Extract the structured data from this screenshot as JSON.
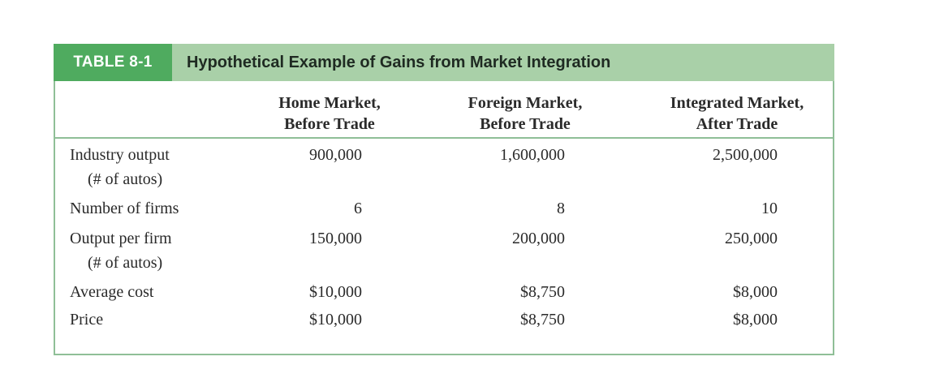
{
  "table": {
    "tag": "TABLE 8-1",
    "title": "Hypothetical Example of Gains from Market Integration",
    "columns": [
      {
        "line1": "Home Market,",
        "line2": "Before Trade"
      },
      {
        "line1": "Foreign Market,",
        "line2": "Before Trade"
      },
      {
        "line1": "Integrated Market,",
        "line2": "After Trade"
      }
    ],
    "rows": [
      {
        "label": "Industry output",
        "sublabel": "(# of autos)",
        "values": [
          "900,000",
          "1,600,000",
          "2,500,000"
        ]
      },
      {
        "label": "Number of firms",
        "sublabel": "",
        "values": [
          "6",
          "8",
          "10"
        ]
      },
      {
        "label": "Output per firm",
        "sublabel": "(# of autos)",
        "values": [
          "150,000",
          "200,000",
          "250,000"
        ]
      },
      {
        "label": "Average cost",
        "sublabel": "",
        "values": [
          "$10,000",
          "$8,750",
          "$8,000"
        ]
      },
      {
        "label": "Price",
        "sublabel": "",
        "values": [
          "$10,000",
          "$8,750",
          "$8,000"
        ]
      }
    ]
  }
}
